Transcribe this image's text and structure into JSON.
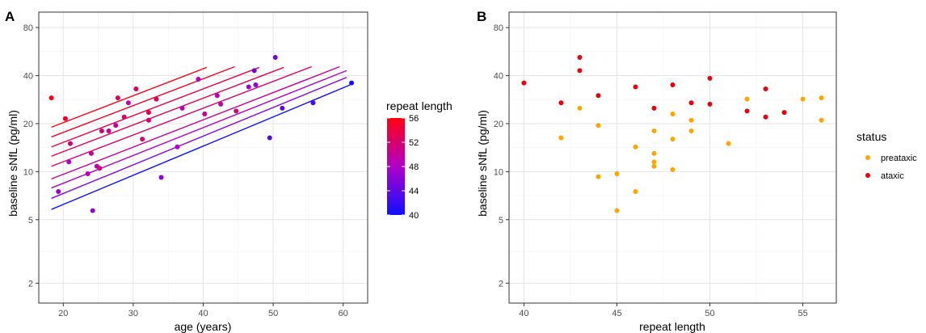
{
  "chart_data": [
    {
      "panel_tag": "A",
      "type": "scatter",
      "xlabel": "age (years)",
      "ylabel": "baseline sNfL (pg/ml)",
      "x_scale": "linear",
      "y_scale": "log",
      "xlim": [
        16.5,
        63.5
      ],
      "ylim": [
        1.5,
        100
      ],
      "x_ticks": [
        20,
        30,
        40,
        50,
        60
      ],
      "y_ticks": [
        2,
        5,
        10,
        20,
        40,
        80
      ],
      "grid": true,
      "color_legend": {
        "title": "repeat length",
        "min": 40,
        "max": 56,
        "ticks": [
          40,
          44,
          48,
          52,
          56
        ],
        "low_color": "#1010ff",
        "mid_color": "#b000c8",
        "high_color": "#ff0010"
      },
      "fit_lines": [
        {
          "repeat": 56,
          "x": [
            18.3,
            40.5
          ],
          "y": [
            19.0,
            45.0
          ]
        },
        {
          "repeat": 55,
          "x": [
            18.3,
            44.5
          ],
          "y": [
            16.5,
            45.5
          ]
        },
        {
          "repeat": 54,
          "x": [
            18.3,
            48.0
          ],
          "y": [
            14.3,
            45.0
          ]
        },
        {
          "repeat": 53,
          "x": [
            18.3,
            51.5
          ],
          "y": [
            12.5,
            45.0
          ]
        },
        {
          "repeat": 52,
          "x": [
            18.3,
            55.5
          ],
          "y": [
            10.8,
            45.5
          ]
        },
        {
          "repeat": 50,
          "x": [
            18.3,
            59.5
          ],
          "y": [
            9.0,
            45.5
          ]
        },
        {
          "repeat": 48,
          "x": [
            18.3,
            60.5
          ],
          "y": [
            7.9,
            43.0
          ]
        },
        {
          "repeat": 46,
          "x": [
            18.3,
            60.5
          ],
          "y": [
            6.8,
            39.0
          ]
        },
        {
          "repeat": 40,
          "x": [
            18.3,
            61.0
          ],
          "y": [
            5.8,
            35.0
          ]
        }
      ],
      "points": [
        {
          "x": 18.3,
          "y": 29.0,
          "repeat": 56
        },
        {
          "x": 19.3,
          "y": 7.5,
          "repeat": 47
        },
        {
          "x": 20.3,
          "y": 21.5,
          "repeat": 55
        },
        {
          "x": 20.8,
          "y": 11.5,
          "repeat": 48
        },
        {
          "x": 21.0,
          "y": 15.0,
          "repeat": 52
        },
        {
          "x": 23.5,
          "y": 9.7,
          "repeat": 49
        },
        {
          "x": 24.0,
          "y": 13.0,
          "repeat": 50
        },
        {
          "x": 24.2,
          "y": 5.7,
          "repeat": 47
        },
        {
          "x": 24.8,
          "y": 10.8,
          "repeat": 50
        },
        {
          "x": 25.2,
          "y": 10.5,
          "repeat": 51
        },
        {
          "x": 25.5,
          "y": 18.0,
          "repeat": 51
        },
        {
          "x": 26.5,
          "y": 18.0,
          "repeat": 50
        },
        {
          "x": 27.5,
          "y": 19.5,
          "repeat": 50
        },
        {
          "x": 27.8,
          "y": 29.0,
          "repeat": 53
        },
        {
          "x": 28.7,
          "y": 22.0,
          "repeat": 52
        },
        {
          "x": 29.3,
          "y": 27.0,
          "repeat": 49
        },
        {
          "x": 30.4,
          "y": 33.0,
          "repeat": 53
        },
        {
          "x": 31.3,
          "y": 16.0,
          "repeat": 52
        },
        {
          "x": 32.2,
          "y": 21.0,
          "repeat": 52
        },
        {
          "x": 32.2,
          "y": 23.5,
          "repeat": 54
        },
        {
          "x": 33.3,
          "y": 28.5,
          "repeat": 53
        },
        {
          "x": 34.0,
          "y": 9.2,
          "repeat": 46
        },
        {
          "x": 36.3,
          "y": 14.3,
          "repeat": 48
        },
        {
          "x": 37.0,
          "y": 25.0,
          "repeat": 49
        },
        {
          "x": 39.3,
          "y": 38.0,
          "repeat": 49
        },
        {
          "x": 40.2,
          "y": 23.0,
          "repeat": 50
        },
        {
          "x": 42.0,
          "y": 30.0,
          "repeat": 48
        },
        {
          "x": 42.5,
          "y": 26.5,
          "repeat": 49
        },
        {
          "x": 44.7,
          "y": 24.0,
          "repeat": 52
        },
        {
          "x": 46.5,
          "y": 34.0,
          "repeat": 47
        },
        {
          "x": 47.3,
          "y": 43.0,
          "repeat": 45
        },
        {
          "x": 47.5,
          "y": 35.0,
          "repeat": 46
        },
        {
          "x": 49.5,
          "y": 16.3,
          "repeat": 43
        },
        {
          "x": 50.3,
          "y": 52.0,
          "repeat": 45
        },
        {
          "x": 51.3,
          "y": 25.0,
          "repeat": 44
        },
        {
          "x": 55.7,
          "y": 27.0,
          "repeat": 43
        },
        {
          "x": 61.2,
          "y": 36.0,
          "repeat": 40
        }
      ]
    },
    {
      "panel_tag": "B",
      "type": "scatter",
      "xlabel": "repeat length",
      "ylabel": "baseline sNfL (pg/ml)",
      "x_scale": "linear",
      "y_scale": "log",
      "xlim": [
        39.2,
        56.8
      ],
      "ylim": [
        1.5,
        100
      ],
      "x_ticks": [
        40,
        45,
        50,
        55
      ],
      "y_ticks": [
        2,
        5,
        10,
        20,
        40,
        80
      ],
      "grid": true,
      "legend": {
        "title": "status",
        "entries": [
          {
            "label": "preataxic",
            "color": "#ffa500"
          },
          {
            "label": "ataxic",
            "color": "#e8000b"
          }
        ]
      },
      "series": [
        {
          "name": "preataxic",
          "color": "#ffa500",
          "points": [
            [
              42,
              16.3
            ],
            [
              43,
              25.0
            ],
            [
              44,
              19.5
            ],
            [
              44,
              9.3
            ],
            [
              45,
              9.7
            ],
            [
              45,
              5.7
            ],
            [
              46,
              14.3
            ],
            [
              46,
              7.5
            ],
            [
              47,
              18.0
            ],
            [
              47,
              13.0
            ],
            [
              47,
              11.5
            ],
            [
              47,
              10.8
            ],
            [
              48,
              23.0
            ],
            [
              48,
              16.0
            ],
            [
              48,
              10.3
            ],
            [
              49,
              21.0
            ],
            [
              49,
              18.0
            ],
            [
              51,
              15.0
            ],
            [
              52,
              28.5
            ],
            [
              55,
              28.5
            ],
            [
              56,
              29.0
            ],
            [
              56,
              21.0
            ]
          ]
        },
        {
          "name": "ataxic",
          "color": "#e8000b",
          "points": [
            [
              40,
              36.0
            ],
            [
              42,
              27.0
            ],
            [
              43,
              52.0
            ],
            [
              43,
              43.0
            ],
            [
              44,
              30.0
            ],
            [
              46,
              34.0
            ],
            [
              47,
              25.0
            ],
            [
              48,
              35.0
            ],
            [
              49,
              27.0
            ],
            [
              50,
              38.5
            ],
            [
              50,
              26.5
            ],
            [
              52,
              24.0
            ],
            [
              53,
              33.0
            ],
            [
              53,
              22.0
            ],
            [
              54,
              23.5
            ]
          ]
        }
      ]
    }
  ]
}
